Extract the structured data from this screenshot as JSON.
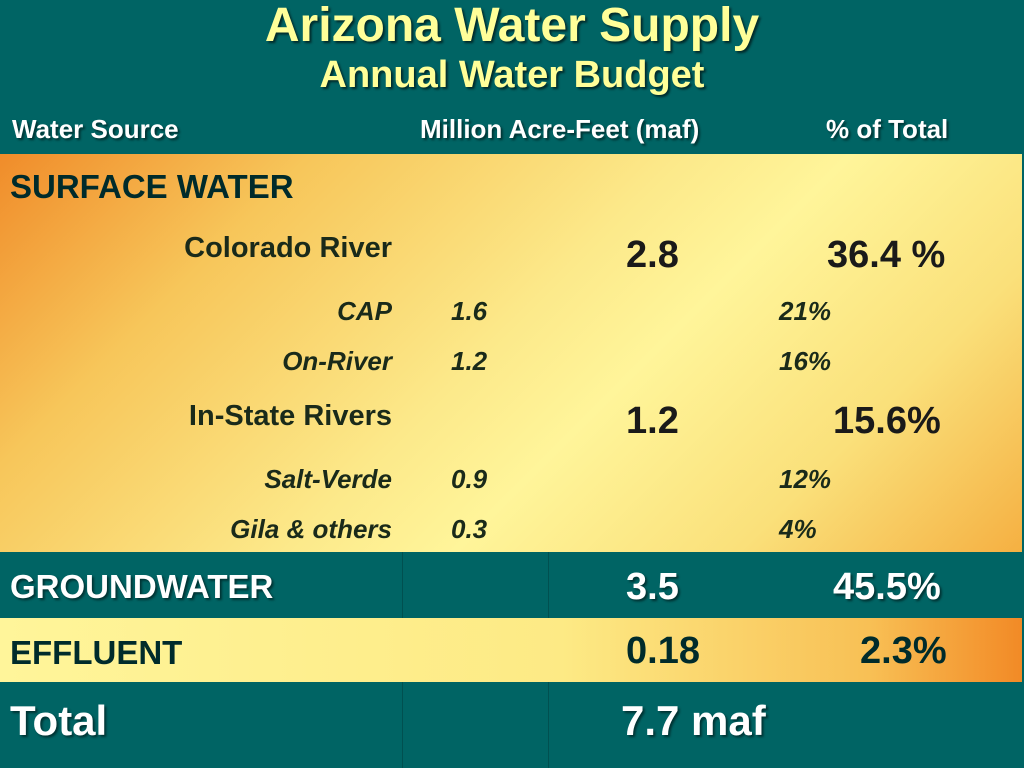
{
  "title": "Arizona Water Supply",
  "subtitle": "Annual Water Budget",
  "headers": {
    "source": "Water Source",
    "maf": "Million Acre-Feet (maf)",
    "pct": "% of Total"
  },
  "surface": {
    "label": "SURFACE WATER",
    "colorado": {
      "label": "Colorado River",
      "maf": "2.8",
      "pct": "36.4 %"
    },
    "cap": {
      "label": "CAP",
      "maf": "1.6",
      "pct": "21%"
    },
    "onriver": {
      "label": "On-River",
      "maf": "1.2",
      "pct": "16%"
    },
    "instate": {
      "label": "In-State Rivers",
      "maf": "1.2",
      "pct": "15.6%"
    },
    "saltverde": {
      "label": "Salt-Verde",
      "maf": "0.9",
      "pct": "12%"
    },
    "gila": {
      "label": "Gila & others",
      "maf": "0.3",
      "pct": "4%"
    }
  },
  "groundwater": {
    "label": "GROUNDWATER",
    "maf": "3.5",
    "pct": "45.5%"
  },
  "effluent": {
    "label": "EFFLUENT",
    "maf": "0.18",
    "pct": "2.3%"
  },
  "total": {
    "label": "Total",
    "value": "7.7 maf"
  },
  "colors": {
    "background": "#006464",
    "title": "#ffff99",
    "panel_light": "#fff59a",
    "panel_orange": "#f08c2a"
  }
}
